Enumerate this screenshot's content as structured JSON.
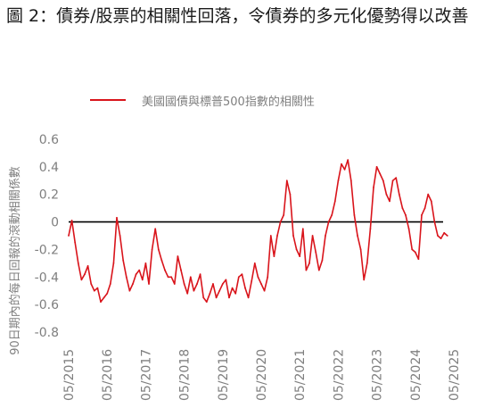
{
  "figure_title": "圖 2：債券/股票的相關性回落，令債券的多元化優勢得以改善",
  "colors": {
    "series_line": "#d9141b",
    "axis_text": "#7f7f7f",
    "zero_line": "#000000",
    "title_text": "#1a1a1a"
  },
  "chart_data": {
    "type": "line",
    "title": "",
    "xlabel": "",
    "ylabel": "90日期內的每日回報的滾動相關係數",
    "ylim": [
      -0.8,
      0.6
    ],
    "yticks": [
      0.6,
      0.4,
      0.2,
      0,
      -0.2,
      -0.4,
      -0.6,
      -0.8
    ],
    "ytick_labels": [
      "0.6",
      "0.4",
      "0.2",
      "0",
      "-0.2",
      "-0.4",
      "-0.6",
      "-0.8"
    ],
    "xlim": [
      "2015-05",
      "2025-05"
    ],
    "xticks": [
      "2015-05",
      "2016-05",
      "2017-05",
      "2018-05",
      "2019-05",
      "2020-05",
      "2021-05",
      "2022-05",
      "2023-05",
      "2024-05",
      "2025-05"
    ],
    "xtick_labels": [
      "05/2015",
      "05/2016",
      "05/2017",
      "05/2018",
      "05/2019",
      "05/2020",
      "05/2021",
      "05/2022",
      "05/2023",
      "05/2024",
      "05/2025"
    ],
    "zero_line": true,
    "grid": false,
    "legend_position": "top",
    "series": [
      {
        "name": "美國國債與標普500指數的相關性",
        "x": [
          "2015-05",
          "2015-06",
          "2015-07",
          "2015-08",
          "2015-09",
          "2015-10",
          "2015-11",
          "2015-12",
          "2016-01",
          "2016-02",
          "2016-03",
          "2016-04",
          "2016-05",
          "2016-06",
          "2016-07",
          "2016-08",
          "2016-09",
          "2016-10",
          "2016-11",
          "2016-12",
          "2017-01",
          "2017-02",
          "2017-03",
          "2017-04",
          "2017-05",
          "2017-06",
          "2017-07",
          "2017-08",
          "2017-09",
          "2017-10",
          "2017-11",
          "2017-12",
          "2018-01",
          "2018-02",
          "2018-03",
          "2018-04",
          "2018-05",
          "2018-06",
          "2018-07",
          "2018-08",
          "2018-09",
          "2018-10",
          "2018-11",
          "2018-12",
          "2019-01",
          "2019-02",
          "2019-03",
          "2019-04",
          "2019-05",
          "2019-06",
          "2019-07",
          "2019-08",
          "2019-09",
          "2019-10",
          "2019-11",
          "2019-12",
          "2020-01",
          "2020-02",
          "2020-03",
          "2020-04",
          "2020-05",
          "2020-06",
          "2020-07",
          "2020-08",
          "2020-09",
          "2020-10",
          "2020-11",
          "2020-12",
          "2021-01",
          "2021-02",
          "2021-03",
          "2021-04",
          "2021-05",
          "2021-06",
          "2021-07",
          "2021-08",
          "2021-09",
          "2021-10",
          "2021-11",
          "2021-12",
          "2022-01",
          "2022-02",
          "2022-03",
          "2022-04",
          "2022-05",
          "2022-06",
          "2022-07",
          "2022-08",
          "2022-09",
          "2022-10",
          "2022-11",
          "2022-12",
          "2023-01",
          "2023-02",
          "2023-03",
          "2023-04",
          "2023-05",
          "2023-06",
          "2023-07",
          "2023-08",
          "2023-09",
          "2023-10",
          "2023-11",
          "2023-12",
          "2024-01",
          "2024-02",
          "2024-03",
          "2024-04",
          "2024-05",
          "2024-06",
          "2024-07",
          "2024-08",
          "2024-09",
          "2024-10",
          "2024-11",
          "2024-12",
          "2025-01",
          "2025-02",
          "2025-03"
        ],
        "values": [
          -0.1,
          0.01,
          -0.15,
          -0.3,
          -0.42,
          -0.38,
          -0.32,
          -0.45,
          -0.5,
          -0.48,
          -0.58,
          -0.55,
          -0.52,
          -0.45,
          -0.3,
          0.03,
          -0.1,
          -0.28,
          -0.4,
          -0.5,
          -0.45,
          -0.38,
          -0.35,
          -0.42,
          -0.3,
          -0.45,
          -0.2,
          -0.05,
          -0.2,
          -0.28,
          -0.35,
          -0.4,
          -0.4,
          -0.45,
          -0.25,
          -0.35,
          -0.45,
          -0.52,
          -0.4,
          -0.5,
          -0.45,
          -0.38,
          -0.55,
          -0.58,
          -0.52,
          -0.45,
          -0.55,
          -0.5,
          -0.45,
          -0.42,
          -0.55,
          -0.48,
          -0.52,
          -0.4,
          -0.38,
          -0.48,
          -0.55,
          -0.43,
          -0.3,
          -0.4,
          -0.45,
          -0.5,
          -0.4,
          -0.1,
          -0.25,
          -0.1,
          0.0,
          0.05,
          0.3,
          0.2,
          -0.1,
          -0.2,
          -0.25,
          -0.05,
          -0.35,
          -0.3,
          -0.1,
          -0.22,
          -0.35,
          -0.28,
          -0.1,
          0.0,
          0.05,
          0.15,
          0.3,
          0.42,
          0.38,
          0.45,
          0.3,
          0.05,
          -0.1,
          -0.2,
          -0.42,
          -0.3,
          -0.05,
          0.25,
          0.4,
          0.35,
          0.3,
          0.2,
          0.15,
          0.3,
          0.32,
          0.2,
          0.1,
          0.05,
          -0.05,
          -0.2,
          -0.22,
          -0.27,
          0.05,
          0.1,
          0.2,
          0.15,
          0.0,
          -0.1,
          -0.12,
          -0.08,
          -0.1
        ]
      }
    ]
  }
}
